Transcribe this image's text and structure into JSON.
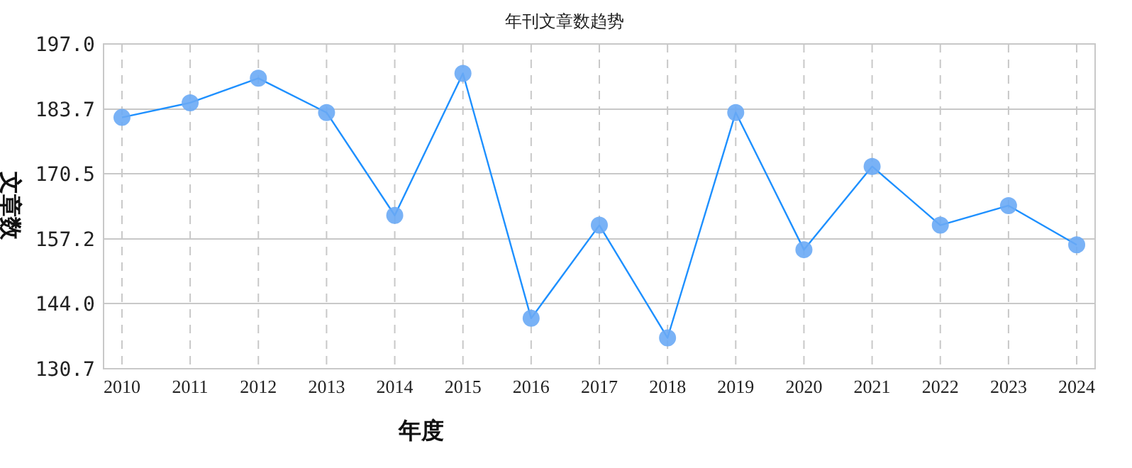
{
  "chart_data": {
    "type": "line",
    "title": "年刊文章数趋势",
    "xlabel": "年度",
    "ylabel": "文章数",
    "categories": [
      "2010",
      "2011",
      "2012",
      "2013",
      "2014",
      "2015",
      "2016",
      "2017",
      "2018",
      "2019",
      "2020",
      "2021",
      "2022",
      "2023",
      "2024"
    ],
    "series": [
      {
        "color": "#1e90ff",
        "values": [
          182,
          185,
          190,
          183,
          162,
          191,
          141,
          160,
          137,
          183,
          155,
          172,
          160,
          164,
          156
        ]
      }
    ],
    "ylim": [
      130.7,
      197.0
    ],
    "yticks": [
      {
        "value": 130.7,
        "label": "130.7"
      },
      {
        "value": 144.0,
        "label": "144.0"
      },
      {
        "value": 157.2,
        "label": "157.2"
      },
      {
        "value": 170.5,
        "label": "170.5"
      },
      {
        "value": 183.7,
        "label": "183.7"
      },
      {
        "value": 197.0,
        "label": "197.0"
      }
    ],
    "grid": true,
    "marker": "circle",
    "line_style": "solid"
  }
}
